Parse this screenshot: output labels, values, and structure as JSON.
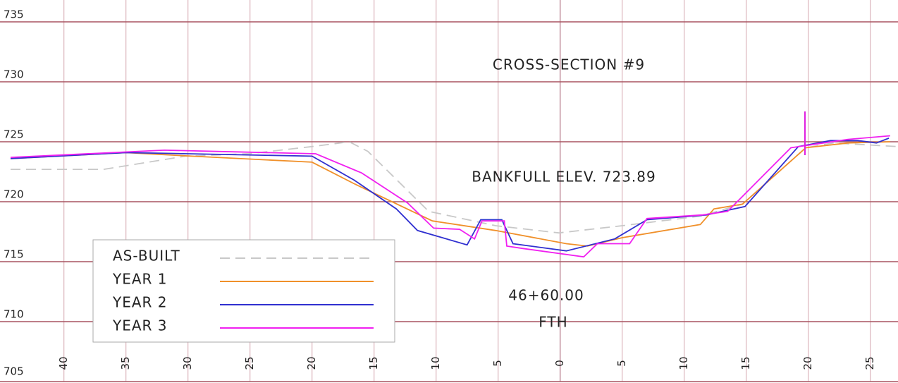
{
  "chart_data": {
    "type": "line",
    "annotations": [
      "CROSS-SECTION #9",
      "BANKFULL ELEV. 723.89",
      "46+60.00",
      "FTH"
    ],
    "xlim": [
      -44.3,
      27.2
    ],
    "ylim": [
      705,
      735
    ],
    "xticks": [
      {
        "value": -40,
        "label": "40"
      },
      {
        "value": -35,
        "label": "35"
      },
      {
        "value": -30,
        "label": "30"
      },
      {
        "value": -25,
        "label": "25"
      },
      {
        "value": -20,
        "label": "20"
      },
      {
        "value": -15,
        "label": "15"
      },
      {
        "value": -10,
        "label": "10"
      },
      {
        "value": -5,
        "label": "5"
      },
      0,
      5,
      10,
      15,
      20,
      25
    ],
    "yticks": [
      705,
      710,
      715,
      720,
      725,
      730,
      735
    ],
    "grid": true,
    "legend": "lower left",
    "series": [
      {
        "name": "AS-BUILT",
        "color": "#c8c8c8",
        "dashed": true,
        "x": [
          -44.3,
          -36.8,
          -35,
          -30.2,
          -25.1,
          -20,
          -17,
          -15.5,
          -10.6,
          -5.2,
          -0.1,
          5,
          11.3,
          14.7,
          19.8,
          22,
          27.2
        ],
        "values": [
          722.7,
          722.7,
          723.0,
          723.8,
          724.0,
          724.6,
          725.0,
          724.2,
          719.2,
          718.0,
          717.4,
          718.0,
          718.8,
          719.8,
          724.5,
          724.9,
          724.6
        ]
      },
      {
        "name": "YEAR 1",
        "color": "#f0902a",
        "x": [
          -44.3,
          -35,
          -29.7,
          -20,
          -16.6,
          -10.3,
          -5.2,
          0.5,
          2.2,
          5,
          11.3,
          12.4,
          14.7,
          19.8,
          23.2,
          26.6
        ],
        "values": [
          723.6,
          724.1,
          723.8,
          723.3,
          721.5,
          718.4,
          717.6,
          716.5,
          716.3,
          717.0,
          718.1,
          719.4,
          719.8,
          724.5,
          724.9,
          725.0
        ]
      },
      {
        "name": "YEAR 2",
        "color": "#3030d0",
        "x": [
          -44.3,
          -35,
          -20,
          -16.6,
          -13.2,
          -11.5,
          -7.5,
          -6.4,
          -4.7,
          -3.8,
          0.5,
          4.4,
          7,
          11.8,
          14.9,
          19.2,
          21.8,
          24,
          25.5,
          26.5
        ],
        "values": [
          723.6,
          724.1,
          723.8,
          721.8,
          719.4,
          717.6,
          716.4,
          718.5,
          718.5,
          716.5,
          715.9,
          716.9,
          718.5,
          718.9,
          719.6,
          724.6,
          725.1,
          725.1,
          724.9,
          725.3
        ]
      },
      {
        "name": "YEAR 3",
        "color": "#f020f0",
        "x": [
          -44.3,
          -31.9,
          -19.7,
          -16,
          -12.3,
          -10.2,
          -8.1,
          -6.9,
          -6.3,
          -4.5,
          -4.3,
          -3,
          1.9,
          3,
          5.6,
          7,
          11.5,
          13.5,
          18.6,
          23.2,
          26.6
        ],
        "values": [
          723.7,
          724.3,
          724.0,
          722.4,
          719.9,
          717.8,
          717.7,
          716.9,
          718.4,
          718.4,
          716.3,
          716.1,
          715.4,
          716.5,
          716.5,
          718.6,
          718.9,
          719.2,
          724.5,
          725.2,
          725.5
        ]
      }
    ]
  }
}
